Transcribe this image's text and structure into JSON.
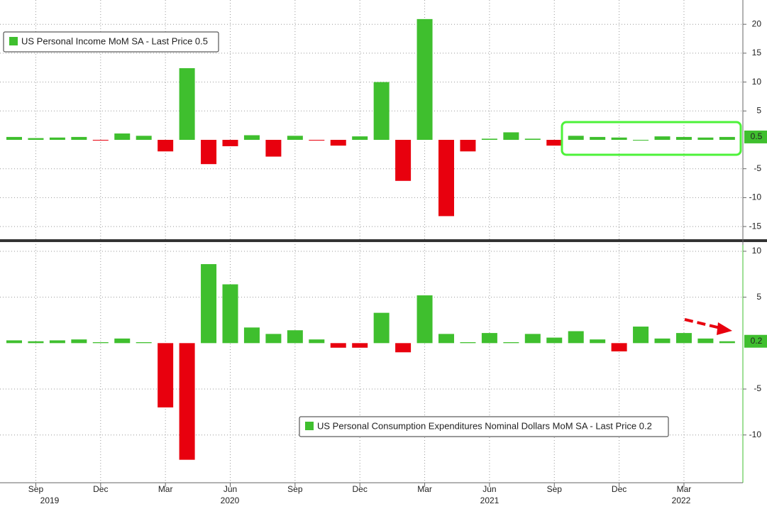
{
  "chart_data": [
    {
      "type": "bar",
      "series_name": "US Personal Income MoM SA - Last Price 0.5",
      "last_price": 0.5,
      "color": "#3fbf2e",
      "negative_color": "#e8000e",
      "values": [
        0.5,
        0.3,
        0.4,
        0.5,
        -0.1,
        1.1,
        0.7,
        -2.0,
        12.4,
        -4.2,
        -1.1,
        0.8,
        -2.9,
        0.7,
        -0.1,
        -1.0,
        0.6,
        10.0,
        -7.1,
        20.9,
        -13.2,
        -2.0,
        0.2,
        1.3,
        0.2,
        -1.0,
        0.7,
        0.5,
        0.4,
        0.0,
        0.6,
        0.5,
        0.4,
        0.5
      ],
      "ylim": [
        -17.2,
        24.2
      ],
      "yticks": [
        20,
        15,
        10,
        5,
        -5,
        -10,
        -15
      ],
      "grid": true
    },
    {
      "type": "bar",
      "series_name": "US Personal Consumption Expenditures Nominal Dollars MoM SA - Last Price 0.2",
      "last_price": 0.2,
      "color": "#3fbf2e",
      "negative_color": "#e8000e",
      "categories": [
        null,
        "Sep",
        null,
        null,
        "Dec",
        null,
        null,
        "Mar",
        null,
        null,
        "Jun",
        null,
        null,
        "Sep",
        null,
        null,
        "Dec",
        null,
        null,
        "Mar",
        null,
        null,
        "Jun",
        null,
        null,
        "Sep",
        null,
        null,
        "Dec",
        null,
        null,
        "Mar",
        null,
        null
      ],
      "years": [
        "2019",
        "2020",
        "2021",
        "2022"
      ],
      "values": [
        0.3,
        0.2,
        0.3,
        0.4,
        0.1,
        0.5,
        0.1,
        -7.0,
        -12.7,
        8.6,
        6.4,
        1.7,
        1.0,
        1.4,
        0.4,
        -0.5,
        -0.5,
        3.3,
        -1.0,
        5.2,
        1.0,
        0.1,
        1.1,
        0.1,
        1.0,
        0.6,
        1.3,
        0.4,
        -0.9,
        1.8,
        0.5,
        1.1,
        0.5,
        0.2
      ],
      "ylim": [
        -15.2,
        11
      ],
      "yticks": [
        10,
        5,
        -5,
        -10
      ],
      "grid": true
    }
  ]
}
